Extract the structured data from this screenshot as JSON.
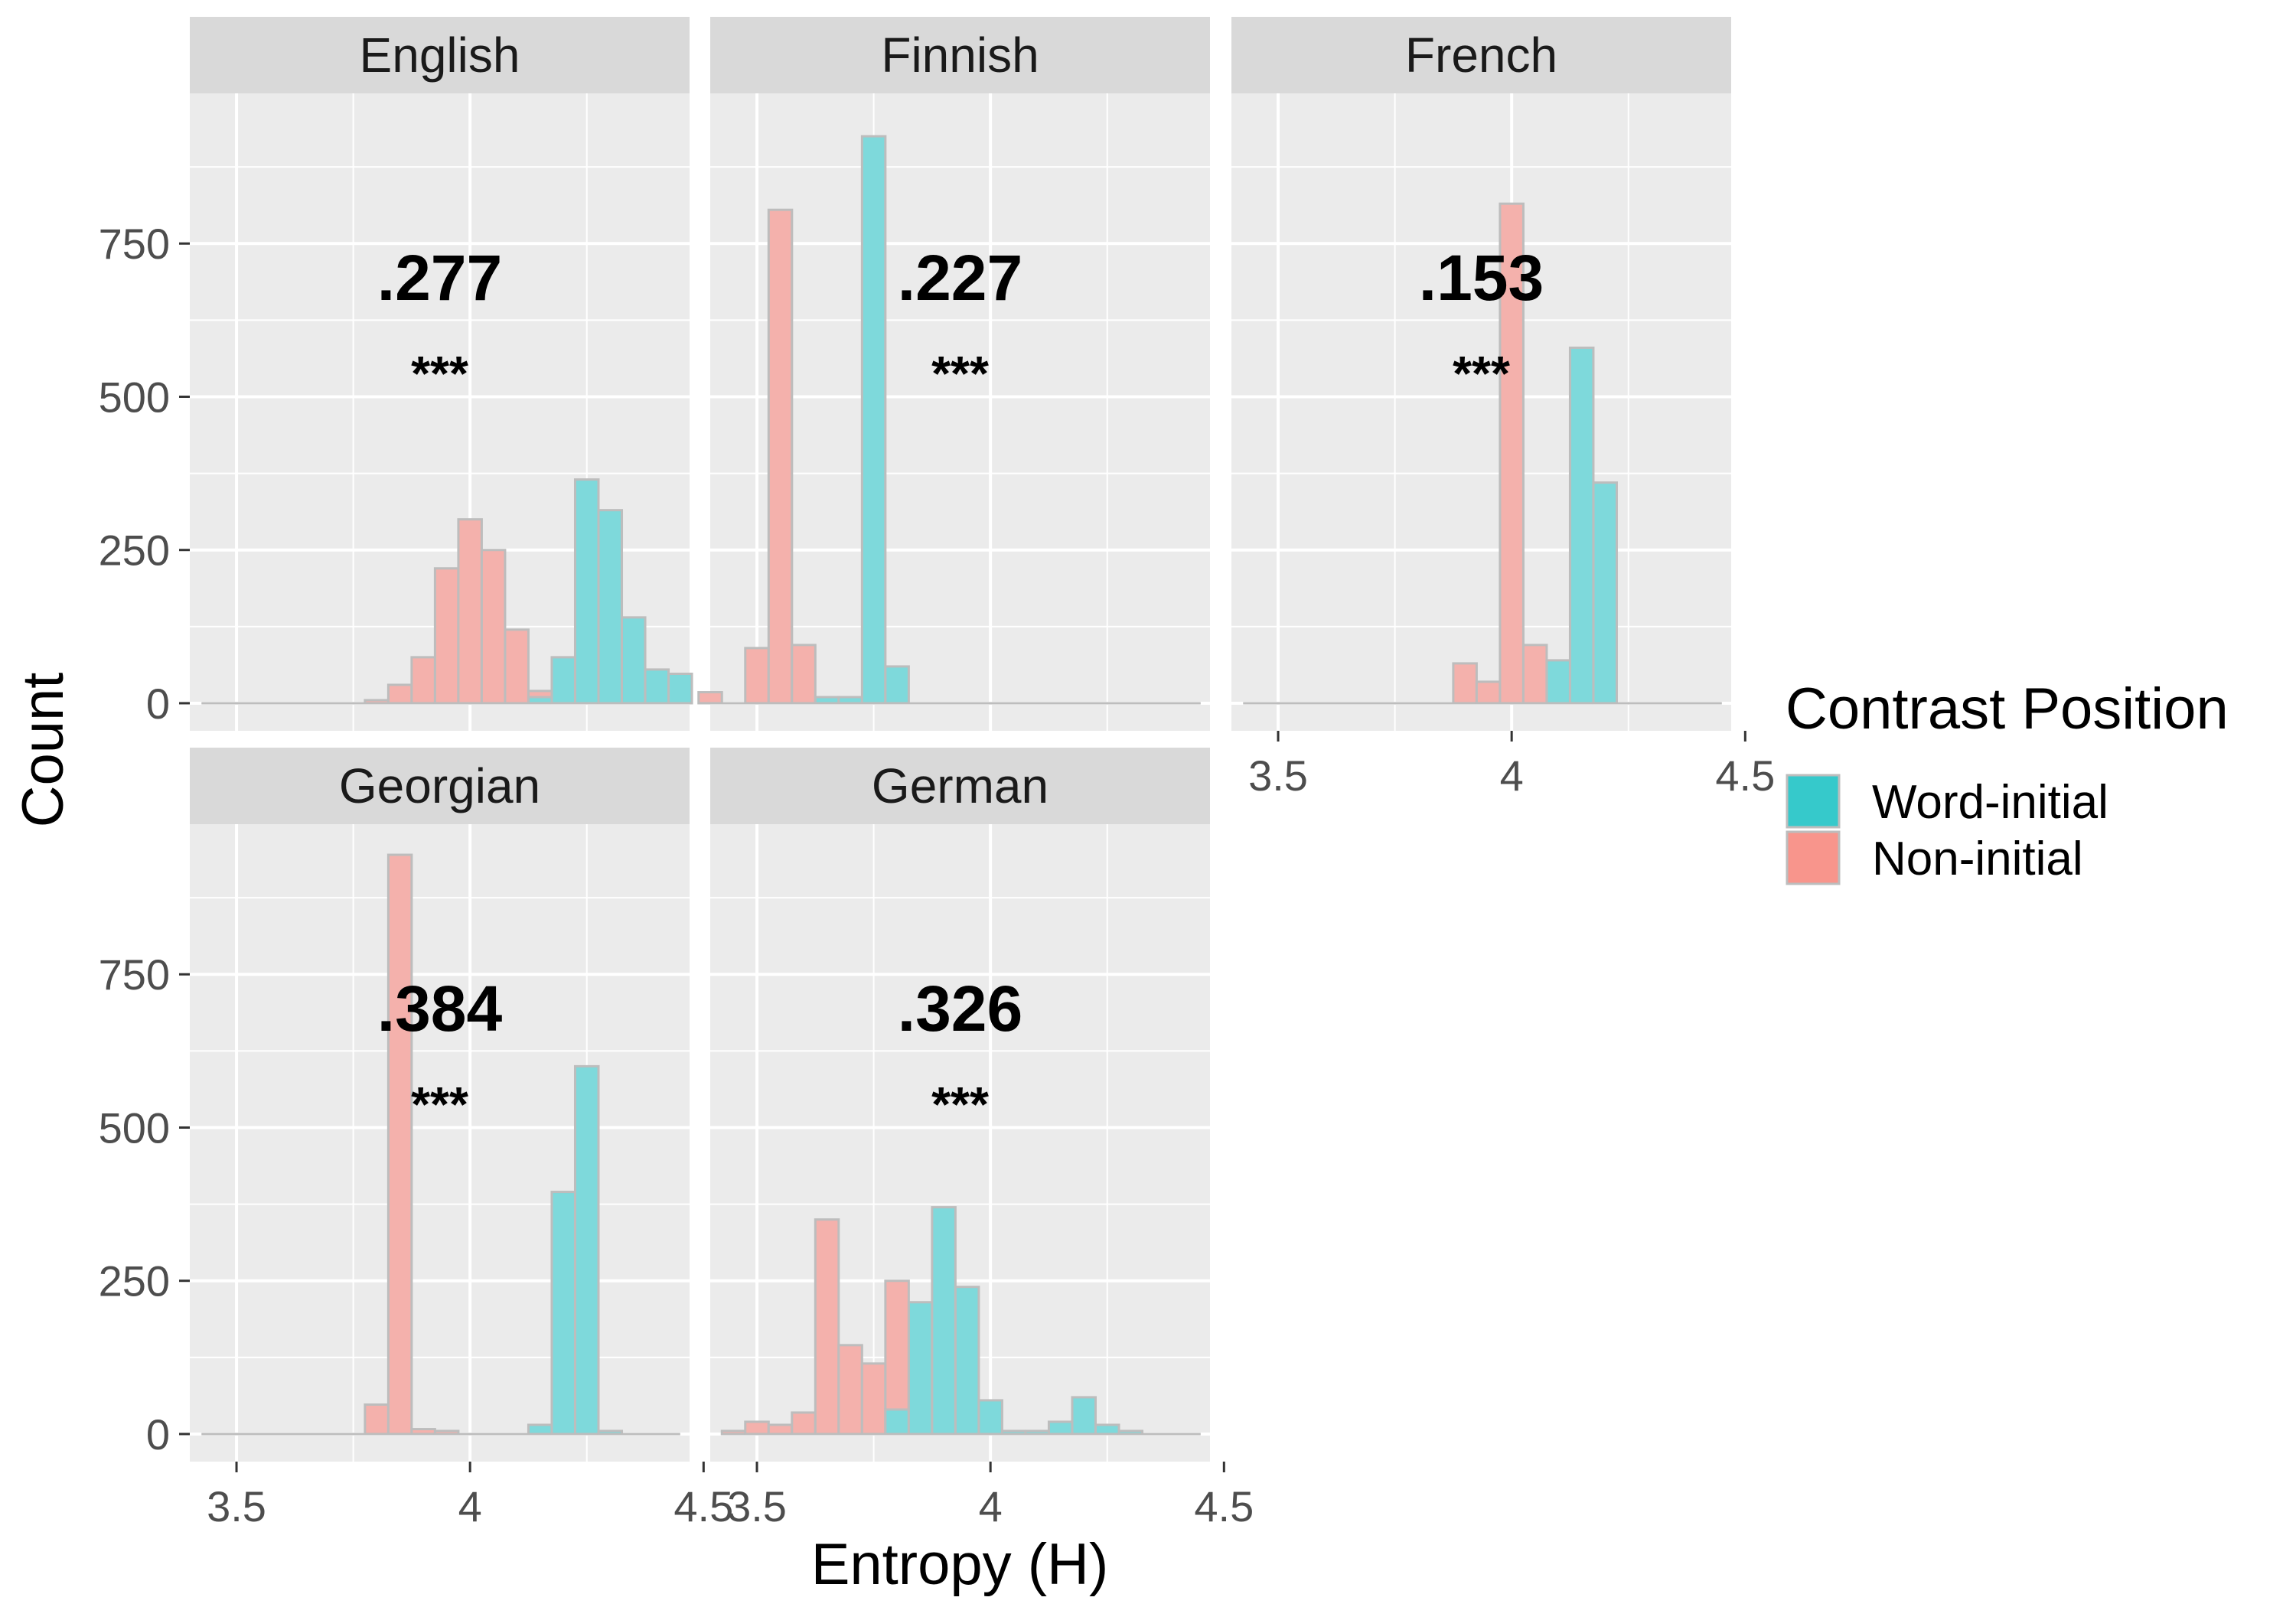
{
  "chart_data": {
    "type": "bar",
    "subtype": "faceted-histogram",
    "xlabel": "Entropy (H)",
    "ylabel": "Count",
    "x_ticks": [
      "3.5",
      "4",
      "4.5"
    ],
    "y_ticks": [
      "0",
      "250",
      "500",
      "750"
    ],
    "xlim": [
      3.4,
      4.47
    ],
    "ylim": [
      -45,
      995
    ],
    "grid": true,
    "legend": {
      "title": "Contrast Position",
      "position": "right",
      "items": [
        {
          "label": "Word-initial",
          "color": "#36C9CB"
        },
        {
          "label": "Non-initial",
          "color": "#F8958C"
        }
      ]
    },
    "bin_width": 0.05,
    "colors": {
      "panel_background": "#EBEBEB",
      "strip_background": "#D9D9D9",
      "grid": "#FFFFFF",
      "word_initial_fill": "#7ED9DB",
      "non_initial_fill": "#F4B1AC",
      "bar_outline": "#BDBDBD"
    },
    "facets": [
      {
        "name": "English",
        "stat": ".277",
        "significance": "***",
        "word_initial": [
          [
            4.15,
            10
          ],
          [
            4.2,
            75
          ],
          [
            4.25,
            365
          ],
          [
            4.3,
            315
          ],
          [
            4.35,
            140
          ],
          [
            4.4,
            55
          ],
          [
            4.45,
            48
          ]
        ],
        "non_initial": [
          [
            3.8,
            5
          ],
          [
            3.85,
            30
          ],
          [
            3.9,
            75
          ],
          [
            3.95,
            220
          ],
          [
            4.0,
            300
          ],
          [
            4.05,
            250
          ],
          [
            4.1,
            120
          ],
          [
            4.15,
            20
          ]
        ]
      },
      {
        "name": "Finnish",
        "stat": ".227",
        "significance": "***",
        "word_initial": [
          [
            3.65,
            10
          ],
          [
            3.7,
            10
          ],
          [
            3.75,
            925
          ],
          [
            3.8,
            60
          ]
        ],
        "non_initial": [
          [
            3.4,
            18
          ],
          [
            3.45,
            0
          ],
          [
            3.5,
            90
          ],
          [
            3.55,
            805
          ],
          [
            3.6,
            95
          ]
        ]
      },
      {
        "name": "French",
        "stat": ".153",
        "significance": "***",
        "word_initial": [
          [
            4.1,
            70
          ],
          [
            4.15,
            580
          ],
          [
            4.2,
            360
          ]
        ],
        "non_initial": [
          [
            3.9,
            65
          ],
          [
            3.95,
            35
          ],
          [
            4.0,
            815
          ],
          [
            4.05,
            95
          ]
        ]
      },
      {
        "name": "Georgian",
        "stat": ".384",
        "significance": "***",
        "word_initial": [
          [
            4.15,
            15
          ],
          [
            4.2,
            395
          ],
          [
            4.25,
            600
          ],
          [
            4.3,
            5
          ]
        ],
        "non_initial": [
          [
            3.8,
            48
          ],
          [
            3.85,
            945
          ],
          [
            3.9,
            8
          ],
          [
            3.95,
            5
          ]
        ]
      },
      {
        "name": "German",
        "stat": ".326",
        "significance": "***",
        "word_initial": [
          [
            3.8,
            40
          ],
          [
            3.85,
            215
          ],
          [
            3.9,
            370
          ],
          [
            3.95,
            240
          ],
          [
            4.0,
            55
          ],
          [
            4.05,
            5
          ],
          [
            4.1,
            5
          ],
          [
            4.15,
            20
          ],
          [
            4.2,
            60
          ],
          [
            4.25,
            15
          ],
          [
            4.3,
            5
          ]
        ],
        "non_initial": [
          [
            3.45,
            5
          ],
          [
            3.5,
            20
          ],
          [
            3.55,
            15
          ],
          [
            3.6,
            35
          ],
          [
            3.65,
            350
          ],
          [
            3.7,
            145
          ],
          [
            3.75,
            115
          ],
          [
            3.8,
            250
          ],
          [
            3.85,
            85
          ],
          [
            3.9,
            15
          ]
        ]
      }
    ]
  }
}
